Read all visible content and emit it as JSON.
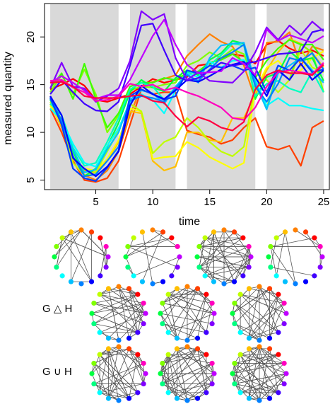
{
  "chart_data": [
    {
      "type": "line",
      "xlabel": "time",
      "ylabel": "measured quantity",
      "xlim": [
        0.5,
        25.5
      ],
      "ylim": [
        4,
        23.5
      ],
      "xticks": [
        5,
        10,
        15,
        20,
        25
      ],
      "yticks": [
        5,
        10,
        15,
        20
      ],
      "shaded_intervals": [
        [
          1,
          7
        ],
        [
          8,
          12
        ],
        [
          13,
          19
        ],
        [
          20,
          25
        ]
      ],
      "x": [
        1,
        2,
        3,
        4,
        5,
        6,
        7,
        8,
        9,
        10,
        11,
        12,
        13,
        14,
        15,
        16,
        17,
        18,
        19,
        20,
        21,
        22,
        23,
        24,
        25
      ],
      "series": [
        {
          "color": "#ff0000",
          "values": [
            14.5,
            15,
            15.6,
            14.9,
            13.4,
            13.2,
            13.6,
            14,
            14.8,
            15.6,
            15.2,
            15.5,
            15.8,
            17,
            17.2,
            17.8,
            18.2,
            18,
            17.2,
            19.2,
            19.6,
            18.8,
            18.3,
            18.6,
            18
          ]
        },
        {
          "color": "#ff4000",
          "values": [
            12.5,
            10,
            7,
            5,
            4.8,
            5.2,
            7,
            10.8,
            14.5,
            14,
            14.2,
            14.2,
            10.2,
            9.8,
            9.5,
            8.8,
            9.2,
            10.5,
            11.5,
            8.5,
            8.2,
            8.6,
            6.5,
            10.5,
            11.2
          ]
        },
        {
          "color": "#ff8000",
          "values": [
            13.8,
            11,
            8,
            5.5,
            5,
            6,
            8,
            11.8,
            14.8,
            15.3,
            15.6,
            16,
            18,
            19.2,
            20.3,
            19.5,
            19,
            17,
            13.5,
            19.4,
            19.5,
            20.5,
            17,
            19,
            18.6
          ]
        },
        {
          "color": "#ffbf00",
          "values": [
            13,
            10.5,
            7.2,
            6,
            5.8,
            7,
            9,
            12.2,
            12,
            7,
            6,
            6.4,
            10,
            10,
            9.2,
            9,
            11.5,
            11.5,
            14,
            16.5,
            18.4,
            19.8,
            19.3,
            18.3,
            16.8
          ]
        },
        {
          "color": "#ffff00",
          "values": [
            12.8,
            10.8,
            7.4,
            6.2,
            6,
            7.2,
            9.2,
            12.5,
            12.2,
            7.2,
            7.4,
            7.5,
            9,
            8.4,
            7.4,
            6.8,
            6.2,
            6.8,
            14.5,
            16.8,
            17.5,
            16.2,
            16.5,
            17.8,
            18.5
          ]
        },
        {
          "color": "#bfff00",
          "values": [
            13.2,
            11,
            6.8,
            5.5,
            5.8,
            8,
            10.2,
            13,
            12.2,
            7.8,
            9,
            9.5,
            11.5,
            10.5,
            9,
            8,
            7.5,
            8.5,
            15,
            15.5,
            14.2,
            15.5,
            18.7,
            16.8,
            16.3
          ]
        },
        {
          "color": "#80ff00",
          "values": [
            14.2,
            16,
            14,
            16.6,
            14,
            10,
            11.8,
            14.4,
            14.8,
            14.7,
            15,
            15.2,
            17,
            17.5,
            18.4,
            17.8,
            18.7,
            18.2,
            15,
            12.5,
            16.5,
            15.5,
            19.2,
            18.4,
            14.2
          ]
        },
        {
          "color": "#40ff00",
          "values": [
            14.6,
            16.2,
            13.5,
            17.2,
            13.5,
            10.5,
            12,
            14.8,
            15.2,
            15.2,
            15.7,
            15.5,
            16.2,
            16.4,
            17.3,
            17.6,
            18.2,
            17.4,
            15.7,
            17.5,
            18.8,
            19.7,
            19.2,
            19.2,
            17.6
          ]
        },
        {
          "color": "#00ff40",
          "values": [
            13.4,
            11.3,
            8,
            5.4,
            6.2,
            8.5,
            11,
            14.2,
            15.5,
            14.7,
            14.3,
            15.7,
            16.5,
            16,
            17.6,
            18.3,
            19.6,
            19.3,
            13.5,
            15.8,
            16.2,
            18.5,
            17.5,
            17.8,
            15.4
          ]
        },
        {
          "color": "#00ffbf",
          "values": [
            13,
            11.8,
            8.4,
            6.5,
            6.8,
            9,
            11.5,
            14.5,
            15.2,
            14.8,
            13.4,
            14.7,
            16.3,
            16.2,
            17,
            18.1,
            19.3,
            19.1,
            13.8,
            15.1,
            15.4,
            14.6,
            14.2,
            16.4,
            14.2
          ]
        },
        {
          "color": "#00ffff",
          "values": [
            12.5,
            11.3,
            8.8,
            6.8,
            6.4,
            8.6,
            10.4,
            13.2,
            14,
            13.4,
            12,
            14.4,
            16.2,
            15.8,
            17.4,
            16.8,
            17.5,
            17.6,
            15.5,
            12.8,
            13.6,
            12.8,
            12.8,
            12.5,
            12.3
          ]
        },
        {
          "color": "#00bfff",
          "values": [
            13.5,
            11,
            8.2,
            5.8,
            6.1,
            8.2,
            10,
            13.4,
            14.4,
            14.1,
            13,
            14.8,
            16.1,
            15.2,
            17.8,
            19.1,
            19.3,
            19.4,
            15.2,
            12.4,
            16.2,
            17,
            17.8,
            16.5,
            15.2
          ]
        },
        {
          "color": "#0080ff",
          "values": [
            13.7,
            11.2,
            7.5,
            5.4,
            5.6,
            7,
            8.5,
            13.3,
            13.8,
            13.6,
            13.2,
            14.6,
            16,
            15.4,
            16.6,
            17.8,
            18.4,
            19.2,
            14.8,
            13.2,
            15.1,
            17.8,
            17.5,
            18.3,
            16.6
          ]
        },
        {
          "color": "#0040ff",
          "values": [
            13.6,
            10.8,
            6.2,
            5.2,
            4.9,
            6.3,
            8.1,
            13.8,
            14.5,
            14,
            13.4,
            13.8,
            16.5,
            16.2,
            17,
            16.8,
            17,
            16.5,
            16.8,
            14.2,
            17,
            16.5,
            17.8,
            16.3,
            16.6
          ]
        },
        {
          "color": "#0000ff",
          "values": [
            13.8,
            11.8,
            7.3,
            6.2,
            5.4,
            6.4,
            8,
            12.8,
            14.9,
            14,
            13.5,
            14.4,
            15.5,
            15.3,
            15.9,
            16.6,
            17.1,
            17.4,
            15.8,
            13.8,
            16.5,
            15.5,
            17.2,
            15.5,
            16.5
          ]
        },
        {
          "color": "#4000ff",
          "values": [
            14,
            15.5,
            14.2,
            13,
            12.3,
            12.2,
            13.2,
            17,
            21.2,
            21.4,
            18.6,
            16,
            15.4,
            15.7,
            16.5,
            17.3,
            17,
            17.2,
            17.4,
            17.8,
            18.2,
            18.3,
            18.5,
            20.5,
            20.8
          ]
        },
        {
          "color": "#8000ff",
          "values": [
            14.6,
            17.3,
            14.8,
            14.6,
            13.2,
            13.8,
            14.6,
            17.5,
            22.7,
            21.8,
            22.4,
            17.8,
            15.5,
            16.3,
            15.4,
            15.3,
            15.2,
            16.4,
            18.4,
            21,
            19.7,
            21.2,
            20.2,
            21.6,
            20.6
          ]
        },
        {
          "color": "#bf00ff",
          "values": [
            15.2,
            15.9,
            15.2,
            14.4,
            13.5,
            13.9,
            13.9,
            15.5,
            17.8,
            20.1,
            21.8,
            19.2,
            17.1,
            16.2,
            16.3,
            16.4,
            17.8,
            17.2,
            16,
            20.8,
            19.6,
            20.2,
            19.8,
            19.4,
            20.1
          ]
        },
        {
          "color": "#ff00bf",
          "values": [
            15.4,
            15.5,
            14.7,
            14.2,
            13.3,
            13.4,
            13.8,
            15.1,
            14.8,
            15,
            14.4,
            14.7,
            14.2,
            13.8,
            13.2,
            12.6,
            11.5,
            11.3,
            12.6,
            14.8,
            16.3,
            16.5,
            16.3,
            16.1,
            17.3
          ]
        },
        {
          "color": "#ff0040",
          "values": [
            15.2,
            15.3,
            14.8,
            13.8,
            13.6,
            13.6,
            13.6,
            13.8,
            13.9,
            13.3,
            13.1,
            11.7,
            10.6,
            11.6,
            11.2,
            10.5,
            10.2,
            11.1,
            14.5,
            16,
            16.5,
            16.2,
            16.2,
            16,
            17.1
          ]
        }
      ]
    }
  ],
  "annotations": {
    "sym_diff_label": "G △ H",
    "union_label": "G ∪ H"
  },
  "network_node_colors": [
    "#80ff00",
    "#bfff00",
    "#ffbf00",
    "#ff8000",
    "#ff4000",
    "#ff0000",
    "#ff00bf",
    "#bf00ff",
    "#8000ff",
    "#4000ff",
    "#0000ff",
    "#0080ff",
    "#00bfff",
    "#00ffff",
    "#00ff80",
    "#00ff40"
  ]
}
